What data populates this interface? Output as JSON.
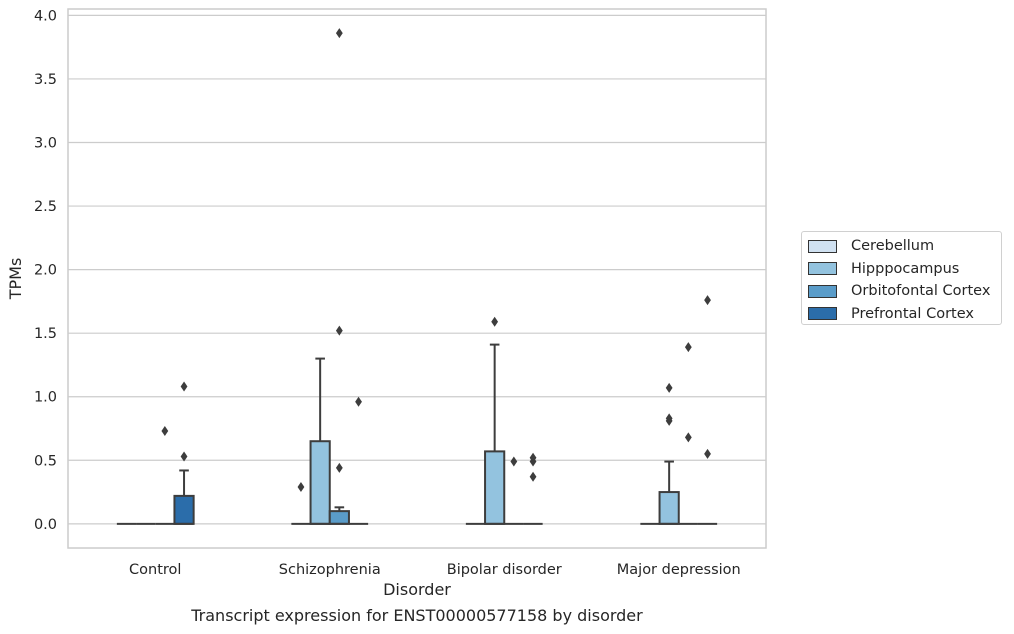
{
  "chart_data": {
    "type": "box",
    "xlabel": "Disorder",
    "ylabel": "TPMs",
    "caption": "Transcript expression for ENST00000577158 by disorder",
    "ylim": [
      -0.19,
      4.05
    ],
    "yticks": [
      "0.0",
      "0.5",
      "1.0",
      "1.5",
      "2.0",
      "2.5",
      "3.0",
      "3.5",
      "4.0"
    ],
    "grid": "horizontal",
    "legend_position": "right",
    "categories": [
      "Control",
      "Schizophrenia",
      "Bipolar disorder",
      "Major depression"
    ],
    "series": [
      {
        "name": "Cerebellum",
        "color": "#d0e1f1",
        "boxes": [
          {
            "q1": 0,
            "median": 0,
            "q3": 0,
            "whisker_low": 0,
            "whisker_high": 0,
            "outliers": []
          },
          {
            "q1": 0,
            "median": 0,
            "q3": 0,
            "whisker_low": 0,
            "whisker_high": 0,
            "outliers": [
              0.29
            ]
          },
          {
            "q1": 0,
            "median": 0,
            "q3": 0,
            "whisker_low": 0,
            "whisker_high": 0,
            "outliers": []
          },
          {
            "q1": 0,
            "median": 0,
            "q3": 0,
            "whisker_low": 0,
            "whisker_high": 0,
            "outliers": []
          }
        ]
      },
      {
        "name": "Hipppocampus",
        "color": "#93c3df",
        "boxes": [
          {
            "q1": 0,
            "median": 0,
            "q3": 0,
            "whisker_low": 0,
            "whisker_high": 0,
            "outliers": []
          },
          {
            "q1": 0,
            "median": 0,
            "q3": 0.65,
            "whisker_low": 0,
            "whisker_high": 1.3,
            "outliers": []
          },
          {
            "q1": 0,
            "median": 0,
            "q3": 0.57,
            "whisker_low": 0,
            "whisker_high": 1.41,
            "outliers": [
              1.59
            ]
          },
          {
            "q1": 0,
            "median": 0,
            "q3": 0.25,
            "whisker_low": 0,
            "whisker_high": 0.49,
            "outliers": [
              0.81,
              0.83,
              1.07
            ]
          }
        ]
      },
      {
        "name": "Orbitofontal Cortex",
        "color": "#5a9cc9",
        "boxes": [
          {
            "q1": 0,
            "median": 0,
            "q3": 0,
            "whisker_low": 0,
            "whisker_high": 0,
            "outliers": [
              0.73
            ]
          },
          {
            "q1": 0,
            "median": 0,
            "q3": 0.1,
            "whisker_low": 0,
            "whisker_high": 0.13,
            "outliers": [
              0.44,
              1.52,
              3.86
            ]
          },
          {
            "q1": 0,
            "median": 0,
            "q3": 0,
            "whisker_low": 0,
            "whisker_high": 0,
            "outliers": [
              0.49
            ]
          },
          {
            "q1": 0,
            "median": 0,
            "q3": 0,
            "whisker_low": 0,
            "whisker_high": 0,
            "outliers": [
              0.68,
              1.39
            ]
          }
        ]
      },
      {
        "name": "Prefrontal Cortex",
        "color": "#2b6daa",
        "boxes": [
          {
            "q1": 0,
            "median": 0,
            "q3": 0.22,
            "whisker_low": 0,
            "whisker_high": 0.42,
            "outliers": [
              0.53,
              1.08
            ]
          },
          {
            "q1": 0,
            "median": 0,
            "q3": 0,
            "whisker_low": 0,
            "whisker_high": 0,
            "outliers": [
              0.96
            ]
          },
          {
            "q1": 0,
            "median": 0,
            "q3": 0,
            "whisker_low": 0,
            "whisker_high": 0,
            "outliers": [
              0.37,
              0.49,
              0.52
            ]
          },
          {
            "q1": 0,
            "median": 0,
            "q3": 0,
            "whisker_low": 0,
            "whisker_high": 0,
            "outliers": [
              0.55,
              1.76
            ]
          }
        ]
      }
    ]
  }
}
